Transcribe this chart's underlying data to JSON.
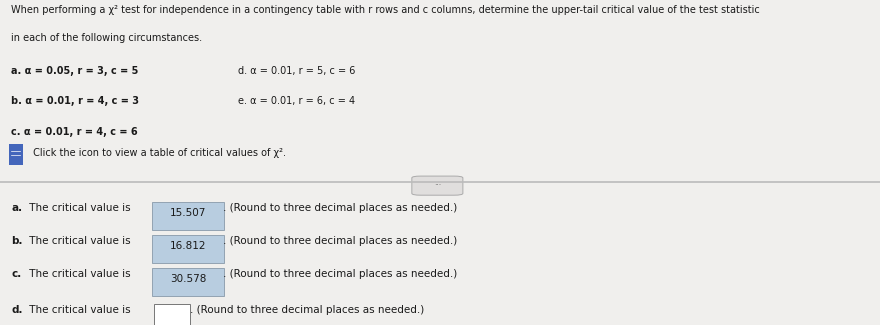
{
  "title_line1": "When performing a χ² test for independence in a contingency table with r rows and c columns, determine the upper-tail critical value of the test statistic",
  "title_line2": "in each of the following circumstances.",
  "conditions_left": [
    "a. α = 0.05, r = 3, c = 5",
    "b. α = 0.01, r = 4, c = 3",
    "c. α = 0.01, r = 4, c = 6"
  ],
  "conditions_right": [
    "d. α = 0.01, r = 5, c = 6",
    "e. α = 0.01, r = 6, c = 4",
    ""
  ],
  "click_text": " Click the icon to view a table of critical values of χ².",
  "answers": [
    {
      "label": "a.",
      "prefix": " The critical value is ",
      "value": "15.507",
      "suffix": ". (Round to three decimal places as needed.)"
    },
    {
      "label": "b.",
      "prefix": " The critical value is ",
      "value": "16.812",
      "suffix": ". (Round to three decimal places as needed.)"
    },
    {
      "label": "c.",
      "prefix": " The critical value is ",
      "value": "30.578",
      "suffix": ". (Round to three decimal places as needed.)"
    },
    {
      "label": "d.",
      "prefix": " The critical value is ",
      "value": "",
      "suffix": ". (Round to three decimal places as needed.)"
    }
  ],
  "top_bg": "#f0efed",
  "bot_bg": "#e8e7e5",
  "highlight_color": "#b8cde0",
  "empty_box_color": "#ffffff",
  "divider_color": "#bbbbbb",
  "text_color": "#1a1a1a",
  "icon_color": "#4466bb",
  "icon_page_color": "#ffffff",
  "btn_color": "#e0dedd",
  "btn_edge_color": "#aaaaaa"
}
